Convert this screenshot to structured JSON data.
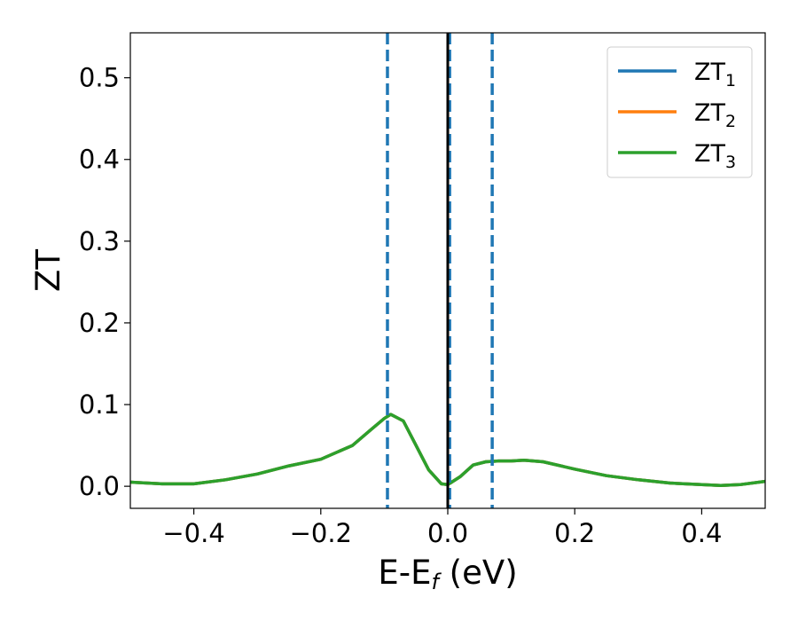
{
  "chart_data": {
    "type": "line",
    "xlabel": "E-E",
    "xlabel_sub": "f",
    "xlabel_unit": " (eV)",
    "ylabel": "ZT",
    "xlim": [
      -0.5,
      0.5
    ],
    "ylim": [
      -0.027,
      0.555
    ],
    "xticks": [
      -0.4,
      -0.2,
      0.0,
      0.2,
      0.4
    ],
    "xtick_labels": [
      "−0.4",
      "−0.2",
      "0.0",
      "0.2",
      "0.4"
    ],
    "yticks": [
      0.0,
      0.1,
      0.2,
      0.3,
      0.4,
      0.5
    ],
    "ytick_labels": [
      "0.0",
      "0.1",
      "0.2",
      "0.3",
      "0.4",
      "0.5"
    ],
    "grid": false,
    "legend_position": "top-right",
    "series": [
      {
        "name": "ZT",
        "sub": "1",
        "color": "#1f77b4",
        "x": [
          -0.5,
          -0.45,
          -0.4,
          -0.35,
          -0.3,
          -0.25,
          -0.2,
          -0.15,
          -0.12,
          -0.1,
          -0.09,
          -0.07,
          -0.05,
          -0.03,
          -0.01,
          0.0,
          0.02,
          0.04,
          0.06,
          0.08,
          0.1,
          0.12,
          0.15,
          0.2,
          0.25,
          0.3,
          0.35,
          0.4,
          0.43,
          0.46,
          0.5
        ],
        "y": [
          0.005,
          0.003,
          0.003,
          0.008,
          0.015,
          0.025,
          0.033,
          0.05,
          0.07,
          0.083,
          0.088,
          0.08,
          0.05,
          0.02,
          0.003,
          0.002,
          0.012,
          0.026,
          0.03,
          0.031,
          0.031,
          0.032,
          0.03,
          0.021,
          0.013,
          0.008,
          0.004,
          0.002,
          0.001,
          0.002,
          0.006
        ]
      },
      {
        "name": "ZT",
        "sub": "2",
        "color": "#ff7f0e",
        "x": [
          -0.5,
          -0.45,
          -0.4,
          -0.35,
          -0.3,
          -0.25,
          -0.2,
          -0.15,
          -0.12,
          -0.1,
          -0.09,
          -0.07,
          -0.05,
          -0.03,
          -0.01,
          0.0,
          0.02,
          0.04,
          0.06,
          0.08,
          0.1,
          0.12,
          0.15,
          0.2,
          0.25,
          0.3,
          0.35,
          0.4,
          0.43,
          0.46,
          0.5
        ],
        "y": [
          0.005,
          0.003,
          0.003,
          0.008,
          0.015,
          0.025,
          0.033,
          0.05,
          0.07,
          0.083,
          0.088,
          0.08,
          0.05,
          0.02,
          0.003,
          0.002,
          0.012,
          0.026,
          0.03,
          0.031,
          0.031,
          0.032,
          0.03,
          0.021,
          0.013,
          0.008,
          0.004,
          0.002,
          0.001,
          0.002,
          0.006
        ]
      },
      {
        "name": "ZT",
        "sub": "3",
        "color": "#2ca02c",
        "x": [
          -0.5,
          -0.45,
          -0.4,
          -0.35,
          -0.3,
          -0.25,
          -0.2,
          -0.15,
          -0.12,
          -0.1,
          -0.09,
          -0.07,
          -0.05,
          -0.03,
          -0.01,
          0.0,
          0.02,
          0.04,
          0.06,
          0.08,
          0.1,
          0.12,
          0.15,
          0.2,
          0.25,
          0.3,
          0.35,
          0.4,
          0.43,
          0.46,
          0.5
        ],
        "y": [
          0.005,
          0.003,
          0.003,
          0.008,
          0.015,
          0.025,
          0.033,
          0.05,
          0.07,
          0.083,
          0.088,
          0.08,
          0.05,
          0.02,
          0.003,
          0.002,
          0.012,
          0.026,
          0.03,
          0.031,
          0.031,
          0.032,
          0.03,
          0.021,
          0.013,
          0.008,
          0.004,
          0.002,
          0.001,
          0.002,
          0.006
        ]
      }
    ],
    "vlines": [
      {
        "x": -0.095,
        "color": "#1f77b4",
        "style": "dashed"
      },
      {
        "x": 0.003,
        "color": "#1f77b4",
        "style": "dashed"
      },
      {
        "x": 0.07,
        "color": "#1f77b4",
        "style": "dashed"
      },
      {
        "x": 0.0,
        "color": "#000000",
        "style": "solid"
      }
    ]
  }
}
